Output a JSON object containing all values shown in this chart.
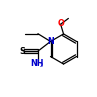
{
  "bg_color": "#ffffff",
  "bond_color": "#000000",
  "atom_colors": {
    "N": "#0000cd",
    "S": "#000000",
    "O": "#ff0000",
    "C": "#000000"
  },
  "figsize": [
    0.97,
    0.97
  ],
  "dpi": 100
}
